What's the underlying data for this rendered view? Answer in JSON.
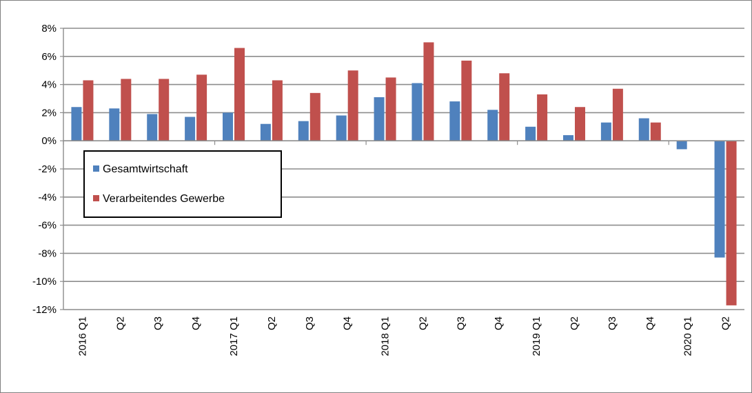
{
  "chart_data": {
    "type": "bar",
    "title": "",
    "xlabel": "",
    "ylabel": "",
    "ylim": [
      -12,
      8
    ],
    "yticks": [
      8,
      6,
      4,
      2,
      0,
      -2,
      -4,
      -6,
      -8,
      -10,
      -12
    ],
    "ytick_labels": [
      "8%",
      "6%",
      "4%",
      "2%",
      "0%",
      "-2%",
      "-4%",
      "-6%",
      "-8%",
      "-10%",
      "-12%"
    ],
    "categories": [
      "2016 Q1",
      "Q2",
      "Q3",
      "Q4",
      "2017 Q1",
      "Q2",
      "Q3",
      "Q4",
      "2018 Q1",
      "Q2",
      "Q3",
      "Q4",
      "2019 Q1",
      "Q2",
      "Q3",
      "Q4",
      "2020 Q1",
      "Q2"
    ],
    "series": [
      {
        "name": "Gesamtwirtschaft",
        "color": "#4f81bd",
        "values": [
          2.4,
          2.3,
          1.9,
          1.7,
          2.0,
          1.2,
          1.4,
          1.8,
          3.1,
          4.1,
          2.8,
          2.2,
          1.0,
          0.4,
          1.3,
          1.6,
          -0.6,
          -8.3
        ]
      },
      {
        "name": "Verarbeitendes Gewerbe",
        "color": "#c0504d",
        "values": [
          4.3,
          4.4,
          4.4,
          4.7,
          6.6,
          4.3,
          3.4,
          5.0,
          4.5,
          7.0,
          5.7,
          4.8,
          3.3,
          2.4,
          3.7,
          1.3,
          null,
          -11.7
        ]
      }
    ],
    "grid": true,
    "legend_position": "left, below zero line"
  }
}
